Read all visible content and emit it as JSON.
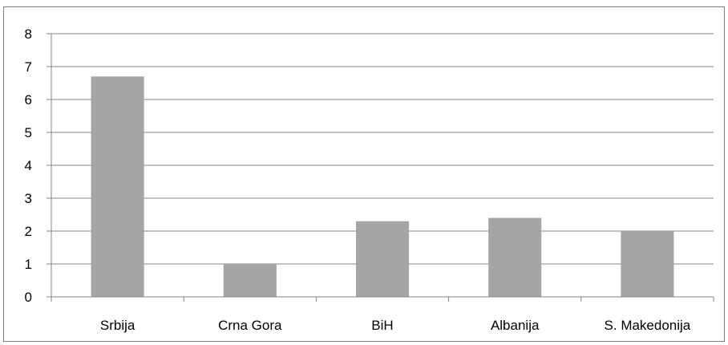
{
  "chart_data": {
    "type": "bar",
    "title": "",
    "xlabel": "",
    "ylabel": "",
    "categories": [
      "Srbija",
      "Crna Gora",
      "BiH",
      "Albanija",
      "S. Makedonija"
    ],
    "values": [
      6.7,
      1.0,
      2.3,
      2.4,
      2.0
    ],
    "ylim": [
      0,
      8
    ],
    "yticks": [
      "0",
      "1",
      "2",
      "3",
      "4",
      "5",
      "6",
      "7",
      "8"
    ],
    "grid": true,
    "legend": "none",
    "colors": {
      "bar": "#a5a5a5",
      "grid": "#868686",
      "axis": "#868686",
      "frame": "#7f7f7f",
      "text": "#000000"
    }
  }
}
